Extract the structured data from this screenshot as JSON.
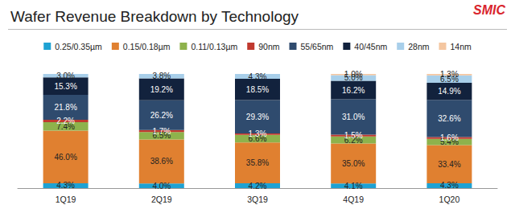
{
  "chart_data": {
    "type": "bar",
    "title": "Wafer Revenue Breakdown by Technology",
    "annotations": [
      "SMIC"
    ],
    "categories": [
      "1Q19",
      "2Q19",
      "3Q19",
      "4Q19",
      "1Q20"
    ],
    "ylim": [
      0,
      100
    ],
    "stacked": true,
    "data_labels": true,
    "tick_labels": "x",
    "grid": false,
    "legend": "top",
    "series": [
      {
        "name": "0.25/0.35µm",
        "color": "#1ea2d3",
        "values": [
          4.3,
          4.0,
          4.2,
          4.1,
          4.3
        ],
        "value_labels": [
          "4.3%",
          "4.0%",
          "4.2%",
          "4.1%",
          "4.3%"
        ]
      },
      {
        "name": "0.15/0.18µm",
        "color": "#e08030",
        "values": [
          46.0,
          38.6,
          35.8,
          35.0,
          33.4
        ],
        "value_labels": [
          "46.0%",
          "38.6%",
          "35.8%",
          "35.0%",
          "33.4%"
        ]
      },
      {
        "name": "0.11/0.13µm",
        "color": "#8eb24c",
        "values": [
          7.4,
          6.5,
          6.6,
          6.2,
          5.4
        ],
        "value_labels": [
          "7.4%",
          "6.5%",
          "6.6%",
          "6.2%",
          "5.4%"
        ]
      },
      {
        "name": "90nm",
        "color": "#c0392e",
        "values": [
          2.2,
          1.7,
          1.3,
          1.5,
          1.6
        ],
        "value_labels": [
          "2.2%",
          "1.7%",
          "1.3%",
          "1.5%",
          "1.6%"
        ]
      },
      {
        "name": "55/65nm",
        "color": "#2f4b6e",
        "values": [
          21.8,
          26.2,
          29.3,
          31.0,
          32.6
        ],
        "value_labels": [
          "21.8%",
          "26.2%",
          "29.3%",
          "31.0%",
          "32.6%"
        ]
      },
      {
        "name": "40/45nm",
        "color": "#12223d",
        "values": [
          15.3,
          19.2,
          18.5,
          16.2,
          14.9
        ],
        "value_labels": [
          "15.3%",
          "19.2%",
          "18.5%",
          "16.2%",
          "14.9%"
        ]
      },
      {
        "name": "28nm",
        "color": "#a8cfea",
        "values": [
          3.0,
          3.8,
          4.3,
          5.0,
          6.5
        ],
        "value_labels": [
          "3.0%",
          "3.8%",
          "4.3%",
          "5.0%",
          "6.5%"
        ]
      },
      {
        "name": "14nm",
        "color": "#f4c6a0",
        "values": [
          null,
          null,
          null,
          1.0,
          1.3
        ],
        "value_labels": [
          null,
          null,
          null,
          "1.0%",
          "1.3%"
        ]
      }
    ]
  }
}
